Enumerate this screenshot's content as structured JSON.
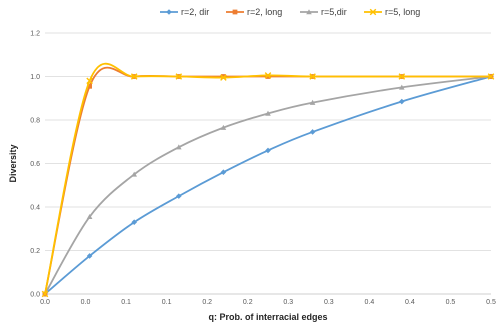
{
  "chart_data": {
    "type": "line",
    "title": "",
    "xlabel": "q: Prob. of interracial edges",
    "ylabel": "Diversity",
    "xlim": [
      0,
      0.5
    ],
    "ylim": [
      0,
      1.2
    ],
    "legend_position": "top",
    "grid": {
      "horizontal": true,
      "vertical": false
    },
    "x_tick_labels": [
      "0.0",
      "0.0",
      "0.1",
      "0.1",
      "0.2",
      "0.2",
      "0.3",
      "0.3",
      "0.4",
      "0.4",
      "0.5",
      "0.5"
    ],
    "y_tick_labels": [
      "0.0",
      "0.2",
      "0.4",
      "0.6",
      "0.8",
      "1.0",
      "1.2"
    ],
    "y_ticks": [
      0,
      0.2,
      0.4,
      0.6,
      0.8,
      1.0,
      1.2
    ],
    "series": [
      {
        "name": "r=2, dir",
        "color": "#5B9BD5",
        "marker": "diamond",
        "x": [
          0,
          0.05,
          0.1,
          0.15,
          0.2,
          0.25,
          0.3,
          0.4,
          0.5
        ],
        "y": [
          0.0,
          0.175,
          0.33,
          0.45,
          0.56,
          0.66,
          0.745,
          0.885,
          1.0
        ]
      },
      {
        "name": "r=2, long",
        "color": "#ED7D31",
        "marker": "square",
        "x": [
          0,
          0.05,
          0.1,
          0.15,
          0.2,
          0.25,
          0.3,
          0.4,
          0.5
        ],
        "y": [
          0.0,
          0.955,
          1.0,
          1.0,
          1.0,
          1.0,
          1.0,
          1.0,
          1.0
        ]
      },
      {
        "name": "r=5,dir",
        "color": "#A5A5A5",
        "marker": "triangle",
        "x": [
          0,
          0.05,
          0.1,
          0.15,
          0.2,
          0.25,
          0.3,
          0.4,
          0.5
        ],
        "y": [
          0.0,
          0.355,
          0.55,
          0.675,
          0.765,
          0.83,
          0.88,
          0.95,
          1.0
        ]
      },
      {
        "name": "r=5, long",
        "color": "#FFC000",
        "marker": "x",
        "x": [
          0,
          0.05,
          0.1,
          0.15,
          0.2,
          0.25,
          0.3,
          0.4,
          0.5
        ],
        "y": [
          0.0,
          0.98,
          1.0,
          1.0,
          0.995,
          1.005,
          1.0,
          1.0,
          1.0
        ]
      }
    ]
  }
}
